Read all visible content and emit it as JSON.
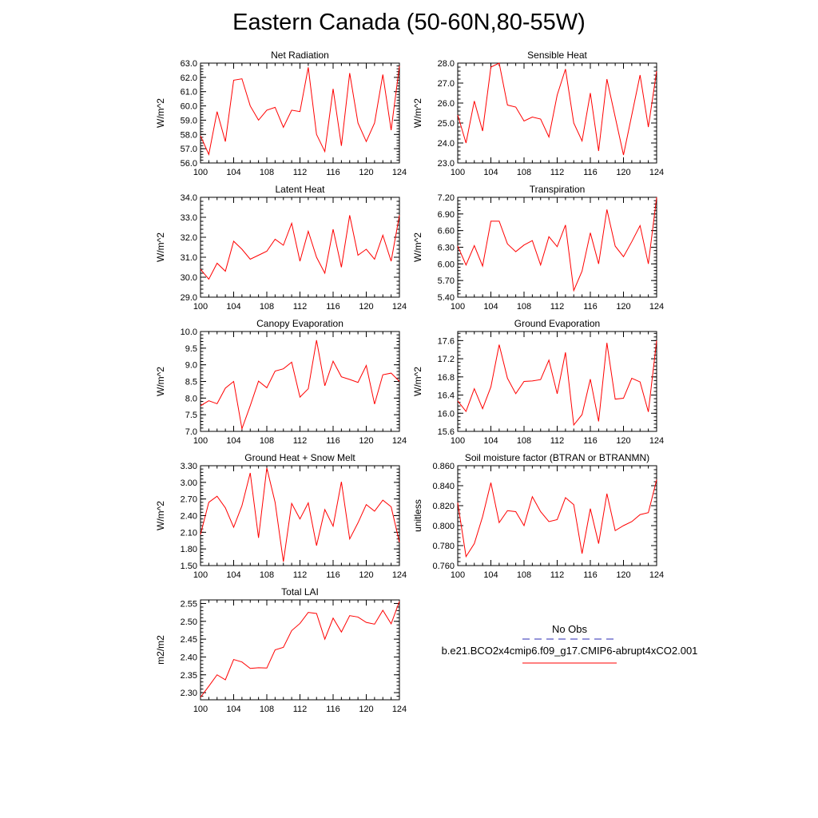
{
  "page": {
    "title": "Eastern Canada (50-60N,80-55W)"
  },
  "legend": {
    "obs_label": "No Obs",
    "model_label": "b.e21.BCO2x4cmip6.f09_g17.CMIP6-abrupt4xCO2.001",
    "obs_color": "#2b2bb3",
    "model_color": "#ff0000"
  },
  "chart_data": [
    {
      "type": "line",
      "title": "Net Radiation",
      "ylabel": "W/m^2",
      "x": [
        100,
        101,
        102,
        103,
        104,
        105,
        106,
        107,
        108,
        109,
        110,
        111,
        112,
        113,
        114,
        115,
        116,
        117,
        118,
        119,
        120,
        121,
        122,
        123,
        124
      ],
      "ylim": [
        56.0,
        63.0
      ],
      "yticks": [
        56.0,
        57.0,
        58.0,
        59.0,
        60.0,
        61.0,
        62.0,
        63.0
      ],
      "yticklabels": [
        "56.0",
        "57.0",
        "58.0",
        "59.0",
        "60.0",
        "61.0",
        "62.0",
        "63.0"
      ],
      "xlim": [
        100,
        124
      ],
      "xticks": [
        100,
        104,
        108,
        112,
        116,
        120,
        124
      ],
      "series": [
        {
          "values": [
            57.9,
            56.6,
            59.6,
            57.5,
            61.8,
            61.9,
            60.0,
            59.0,
            59.7,
            59.9,
            58.5,
            59.7,
            59.6,
            62.7,
            58.0,
            56.8,
            61.2,
            57.2,
            62.3,
            58.8,
            57.5,
            58.8,
            62.2,
            58.3,
            62.8
          ]
        }
      ]
    },
    {
      "type": "line",
      "title": "Sensible Heat",
      "ylabel": "W/m^2",
      "x": [
        100,
        101,
        102,
        103,
        104,
        105,
        106,
        107,
        108,
        109,
        110,
        111,
        112,
        113,
        114,
        115,
        116,
        117,
        118,
        119,
        120,
        121,
        122,
        123,
        124
      ],
      "ylim": [
        23.0,
        28.0
      ],
      "yticks": [
        23.0,
        24.0,
        25.0,
        26.0,
        27.0,
        28.0
      ],
      "yticklabels": [
        "23.0",
        "24.0",
        "25.0",
        "26.0",
        "27.0",
        "28.0"
      ],
      "xlim": [
        100,
        124
      ],
      "xticks": [
        100,
        104,
        108,
        112,
        116,
        120,
        124
      ],
      "series": [
        {
          "values": [
            25.4,
            24.0,
            26.1,
            24.6,
            27.8,
            28.0,
            25.9,
            25.8,
            25.1,
            25.3,
            25.2,
            24.3,
            26.4,
            27.7,
            25.0,
            24.1,
            26.5,
            23.6,
            27.2,
            25.3,
            23.4,
            25.4,
            27.4,
            24.8,
            27.6
          ]
        }
      ]
    },
    {
      "type": "line",
      "title": "Latent Heat",
      "ylabel": "W/m^2",
      "x": [
        100,
        101,
        102,
        103,
        104,
        105,
        106,
        107,
        108,
        109,
        110,
        111,
        112,
        113,
        114,
        115,
        116,
        117,
        118,
        119,
        120,
        121,
        122,
        123,
        124
      ],
      "ylim": [
        29.0,
        34.0
      ],
      "yticks": [
        29.0,
        30.0,
        31.0,
        32.0,
        33.0,
        34.0
      ],
      "yticklabels": [
        "29.0",
        "30.0",
        "31.0",
        "32.0",
        "33.0",
        "34.0"
      ],
      "xlim": [
        100,
        124
      ],
      "xticks": [
        100,
        104,
        108,
        112,
        116,
        120,
        124
      ],
      "series": [
        {
          "values": [
            30.4,
            29.9,
            30.7,
            30.3,
            31.8,
            31.4,
            30.9,
            31.1,
            31.3,
            31.9,
            31.6,
            32.7,
            30.8,
            32.3,
            31.0,
            30.2,
            32.4,
            30.5,
            33.1,
            31.1,
            31.4,
            30.9,
            32.1,
            30.8,
            33.1
          ]
        }
      ]
    },
    {
      "type": "line",
      "title": "Transpiration",
      "ylabel": "W/m^2",
      "x": [
        100,
        101,
        102,
        103,
        104,
        105,
        106,
        107,
        108,
        109,
        110,
        111,
        112,
        113,
        114,
        115,
        116,
        117,
        118,
        119,
        120,
        121,
        122,
        123,
        124
      ],
      "ylim": [
        5.4,
        7.2
      ],
      "yticks": [
        5.4,
        5.7,
        6.0,
        6.3,
        6.6,
        6.9,
        7.2
      ],
      "yticklabels": [
        "5.40",
        "5.70",
        "6.00",
        "6.30",
        "6.60",
        "6.90",
        "7.20"
      ],
      "xlim": [
        100,
        124
      ],
      "xticks": [
        100,
        104,
        108,
        112,
        116,
        120,
        124
      ],
      "series": [
        {
          "values": [
            6.32,
            5.98,
            6.33,
            5.96,
            6.77,
            6.77,
            6.36,
            6.22,
            6.34,
            6.42,
            5.98,
            6.49,
            6.31,
            6.7,
            5.52,
            5.87,
            6.56,
            6.0,
            6.98,
            6.32,
            6.13,
            6.4,
            6.69,
            6.0,
            7.2
          ]
        }
      ]
    },
    {
      "type": "line",
      "title": "Canopy Evaporation",
      "ylabel": "W/m^2",
      "x": [
        100,
        101,
        102,
        103,
        104,
        105,
        106,
        107,
        108,
        109,
        110,
        111,
        112,
        113,
        114,
        115,
        116,
        117,
        118,
        119,
        120,
        121,
        122,
        123,
        124
      ],
      "ylim": [
        7.0,
        10.0
      ],
      "yticks": [
        7.0,
        7.5,
        8.0,
        8.5,
        9.0,
        9.5,
        10.0
      ],
      "yticklabels": [
        "7.0",
        "7.5",
        "8.0",
        "8.5",
        "9.0",
        "9.5",
        "10.0"
      ],
      "xlim": [
        100,
        124
      ],
      "xticks": [
        100,
        104,
        108,
        112,
        116,
        120,
        124
      ],
      "series": [
        {
          "values": [
            7.77,
            7.92,
            7.83,
            8.3,
            8.5,
            7.08,
            7.77,
            8.51,
            8.31,
            8.81,
            8.88,
            9.08,
            8.03,
            8.28,
            9.74,
            8.37,
            9.11,
            8.64,
            8.56,
            8.47,
            8.98,
            7.82,
            8.7,
            8.75,
            8.5
          ]
        }
      ]
    },
    {
      "type": "line",
      "title": "Ground Evaporation",
      "ylabel": "W/m^2",
      "x": [
        100,
        101,
        102,
        103,
        104,
        105,
        106,
        107,
        108,
        109,
        110,
        111,
        112,
        113,
        114,
        115,
        116,
        117,
        118,
        119,
        120,
        121,
        122,
        123,
        124
      ],
      "ylim": [
        15.6,
        17.8
      ],
      "yticks": [
        15.6,
        16.0,
        16.4,
        16.8,
        17.2,
        17.6
      ],
      "yticklabels": [
        "15.6",
        "16.0",
        "16.4",
        "16.8",
        "17.2",
        "17.6"
      ],
      "xlim": [
        100,
        124
      ],
      "xticks": [
        100,
        104,
        108,
        112,
        116,
        120,
        124
      ],
      "series": [
        {
          "values": [
            16.27,
            16.04,
            16.54,
            16.1,
            16.58,
            17.51,
            16.77,
            16.43,
            16.7,
            16.71,
            16.74,
            17.17,
            16.43,
            17.34,
            15.74,
            15.97,
            16.75,
            15.82,
            17.55,
            16.31,
            16.33,
            16.77,
            16.69,
            16.03,
            17.6
          ]
        }
      ]
    },
    {
      "type": "line",
      "title": "Ground Heat + Snow Melt",
      "ylabel": "W/m^2",
      "x": [
        100,
        101,
        102,
        103,
        104,
        105,
        106,
        107,
        108,
        109,
        110,
        111,
        112,
        113,
        114,
        115,
        116,
        117,
        118,
        119,
        120,
        121,
        122,
        123,
        124
      ],
      "ylim": [
        1.5,
        3.3
      ],
      "yticks": [
        1.5,
        1.8,
        2.1,
        2.4,
        2.7,
        3.0,
        3.3
      ],
      "yticklabels": [
        "1.50",
        "1.80",
        "2.10",
        "2.40",
        "2.70",
        "3.00",
        "3.30"
      ],
      "xlim": [
        100,
        124
      ],
      "xticks": [
        100,
        104,
        108,
        112,
        116,
        120,
        124
      ],
      "series": [
        {
          "values": [
            2.06,
            2.64,
            2.75,
            2.54,
            2.19,
            2.58,
            3.17,
            2.0,
            3.26,
            2.64,
            1.57,
            2.62,
            2.34,
            2.63,
            1.86,
            2.51,
            2.21,
            3.01,
            1.98,
            2.27,
            2.6,
            2.48,
            2.68,
            2.56,
            1.92
          ]
        }
      ]
    },
    {
      "type": "line",
      "title": "Soil moisture factor (BTRAN or BTRANMN)",
      "ylabel": "unitless",
      "x": [
        100,
        101,
        102,
        103,
        104,
        105,
        106,
        107,
        108,
        109,
        110,
        111,
        112,
        113,
        114,
        115,
        116,
        117,
        118,
        119,
        120,
        121,
        122,
        123,
        124
      ],
      "ylim": [
        0.76,
        0.86
      ],
      "yticks": [
        0.76,
        0.78,
        0.8,
        0.82,
        0.84,
        0.86
      ],
      "yticklabels": [
        "0.760",
        "0.780",
        "0.800",
        "0.820",
        "0.840",
        "0.860"
      ],
      "xlim": [
        100,
        124
      ],
      "xticks": [
        100,
        104,
        108,
        112,
        116,
        120,
        124
      ],
      "series": [
        {
          "values": [
            0.823,
            0.769,
            0.782,
            0.809,
            0.843,
            0.803,
            0.815,
            0.814,
            0.8,
            0.829,
            0.814,
            0.804,
            0.806,
            0.828,
            0.821,
            0.772,
            0.817,
            0.782,
            0.832,
            0.795,
            0.8,
            0.804,
            0.811,
            0.813,
            0.846
          ]
        }
      ]
    },
    {
      "type": "line",
      "title": "Total LAI",
      "ylabel": "m2/m2",
      "x": [
        100,
        101,
        102,
        103,
        104,
        105,
        106,
        107,
        108,
        109,
        110,
        111,
        112,
        113,
        114,
        115,
        116,
        117,
        118,
        119,
        120,
        121,
        122,
        123,
        124
      ],
      "ylim": [
        2.28,
        2.56
      ],
      "yticks": [
        2.3,
        2.35,
        2.4,
        2.45,
        2.5,
        2.55
      ],
      "yticklabels": [
        "2.30",
        "2.35",
        "2.40",
        "2.45",
        "2.50",
        "2.55"
      ],
      "xlim": [
        100,
        124
      ],
      "xticks": [
        100,
        104,
        108,
        112,
        116,
        120,
        124
      ],
      "series": [
        {
          "values": [
            2.287,
            2.318,
            2.35,
            2.336,
            2.393,
            2.386,
            2.368,
            2.37,
            2.369,
            2.42,
            2.427,
            2.474,
            2.494,
            2.525,
            2.522,
            2.45,
            2.509,
            2.47,
            2.516,
            2.512,
            2.497,
            2.492,
            2.531,
            2.493,
            2.556
          ]
        }
      ]
    }
  ]
}
